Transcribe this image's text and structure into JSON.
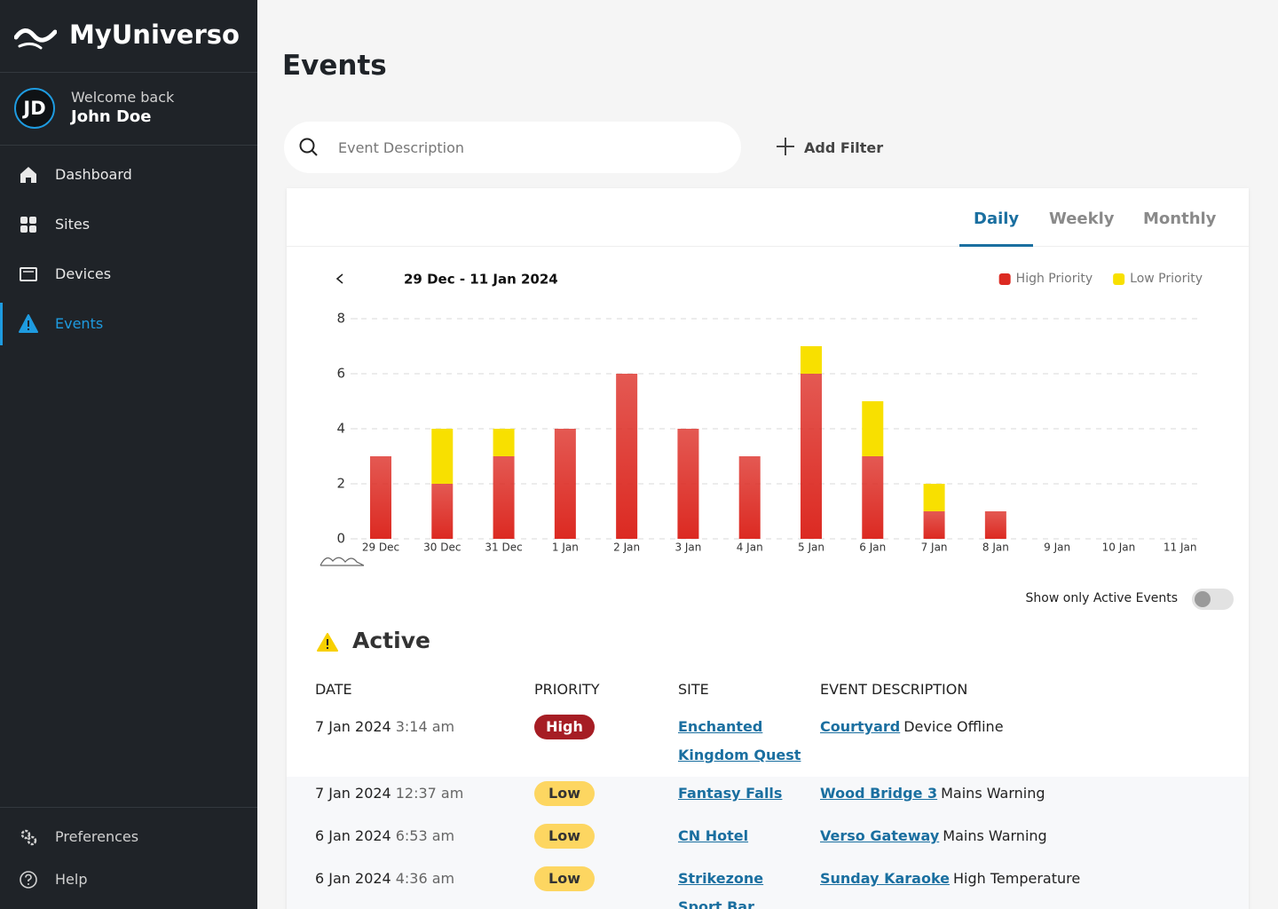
{
  "sidebar": {
    "brand": "MyUniverso",
    "user": {
      "initials": "JD",
      "greeting": "Welcome back",
      "name": "John Doe"
    },
    "nav": [
      {
        "label": "Dashboard",
        "active": false
      },
      {
        "label": "Sites",
        "active": false
      },
      {
        "label": "Devices",
        "active": false
      },
      {
        "label": "Events",
        "active": true
      }
    ],
    "footer": [
      {
        "label": "Preferences"
      },
      {
        "label": "Help"
      }
    ]
  },
  "page": {
    "title": "Events",
    "search_placeholder": "Event Description",
    "add_filter": "Add Filter",
    "tabs": [
      "Daily",
      "Weekly",
      "Monthly"
    ],
    "active_tab": 0,
    "date_range": "29 Dec - 11 Jan 2024",
    "toggle_label": "Show only Active Events",
    "toggle_on": false
  },
  "chart_data": {
    "type": "bar",
    "stacked": true,
    "categories": [
      "29 Dec",
      "30 Dec",
      "31 Dec",
      "1 Jan",
      "2 Jan",
      "3 Jan",
      "4 Jan",
      "5 Jan",
      "6 Jan",
      "7 Jan",
      "8 Jan",
      "9 Jan",
      "10 Jan",
      "11 Jan"
    ],
    "series": [
      {
        "name": "High Priority",
        "color": "#dc2a22",
        "values": [
          3,
          2,
          3,
          4,
          6,
          4,
          3,
          6,
          3,
          1,
          1,
          0,
          0,
          0
        ]
      },
      {
        "name": "Low Priority",
        "color": "#f8e000",
        "values": [
          0,
          2,
          1,
          0,
          0,
          0,
          0,
          1,
          2,
          1,
          0,
          0,
          0,
          0
        ]
      }
    ],
    "ylim": [
      0,
      8
    ],
    "yticks": [
      0,
      2,
      4,
      6,
      8
    ],
    "grid": true,
    "legend": "top-right"
  },
  "events": {
    "section_title": "Active",
    "columns": [
      "DATE",
      "PRIORITY",
      "SITE",
      "EVENT DESCRIPTION"
    ],
    "rows": [
      {
        "date": "7 Jan 2024",
        "time": "3:14 am",
        "priority": "High",
        "priority_color": "#a61d24",
        "site": "Enchanted Kingdom Quest",
        "device": "Courtyard",
        "description": "Device Offline"
      },
      {
        "date": "7 Jan 2024",
        "time": "12:37 am",
        "priority": "Low",
        "priority_color": "#fdd661",
        "site": "Fantasy Falls",
        "device": "Wood Bridge 3",
        "description": "Mains Warning"
      },
      {
        "date": "6 Jan 2024",
        "time": "6:53 am",
        "priority": "Low",
        "priority_color": "#fdd661",
        "site": "CN Hotel",
        "device": "Verso Gateway",
        "description": "Mains Warning"
      },
      {
        "date": "6 Jan 2024",
        "time": "4:36 am",
        "priority": "Low",
        "priority_color": "#fdd661",
        "site": "Strikezone Sport Bar",
        "device": "Sunday Karaoke",
        "description": "High Temperature"
      }
    ]
  }
}
